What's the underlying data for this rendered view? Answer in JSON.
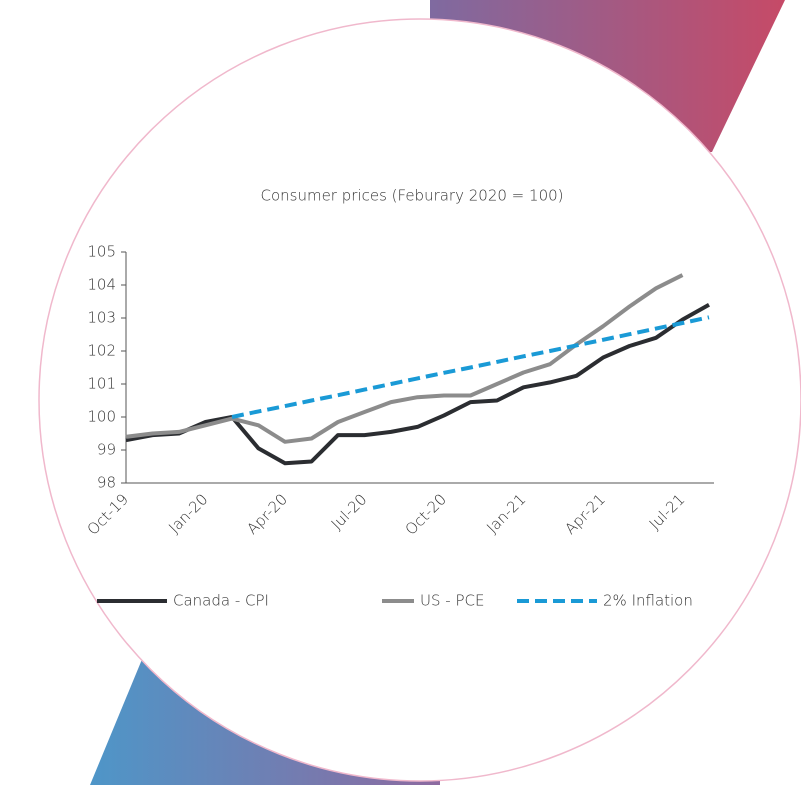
{
  "chart_data": {
    "type": "line",
    "title": "Consumer prices (Feburary 2020 = 100)",
    "categories": [
      "Oct-19",
      null,
      null,
      "Jan-20",
      null,
      null,
      "Apr-20",
      null,
      null,
      "Jul-20",
      null,
      null,
      "Oct-20",
      null,
      null,
      "Jan-21",
      null,
      null,
      "Apr-21",
      null,
      null,
      "Jul-21",
      null
    ],
    "series": [
      {
        "name": "Canada - CPI",
        "color": "#2b2d31",
        "dash": false,
        "values": [
          99.3,
          99.45,
          99.5,
          99.85,
          100,
          99.05,
          98.6,
          98.65,
          99.45,
          99.45,
          99.55,
          99.7,
          100.05,
          100.45,
          100.5,
          100.9,
          101.05,
          101.25,
          101.8,
          102.15,
          102.4,
          102.95,
          103.4
        ]
      },
      {
        "name": "US - PCE",
        "color": "#8c8c8c",
        "dash": false,
        "values": [
          99.4,
          99.5,
          99.55,
          99.75,
          99.95,
          99.75,
          99.25,
          99.35,
          99.85,
          100.15,
          100.45,
          100.6,
          100.65,
          100.65,
          101.0,
          101.35,
          101.6,
          102.2,
          102.75,
          103.35,
          103.9,
          104.3,
          null
        ]
      },
      {
        "name": "2% Inflation",
        "color": "#1a9ad6",
        "dash": true,
        "values": [
          null,
          null,
          null,
          null,
          100,
          100.17,
          100.33,
          100.5,
          100.66,
          100.83,
          101.0,
          101.17,
          101.34,
          101.5,
          101.67,
          101.84,
          102.0,
          102.17,
          102.34,
          102.51,
          102.68,
          102.85,
          103.02
        ]
      }
    ],
    "ylim": [
      98,
      105
    ],
    "yticks": [
      98,
      99,
      100,
      101,
      102,
      103,
      104,
      105
    ],
    "grid": false
  }
}
